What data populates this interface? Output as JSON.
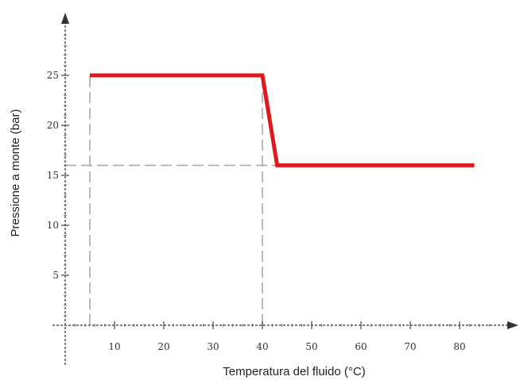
{
  "chart_data": {
    "type": "line",
    "xlabel": "Temperatura del fluido (°C)",
    "ylabel": "Pressione a monte (bar)",
    "x_ticks": [
      10,
      20,
      30,
      40,
      50,
      60,
      70,
      80
    ],
    "y_ticks": [
      5,
      10,
      15,
      20,
      25
    ],
    "xlim": [
      0,
      90
    ],
    "ylim": [
      0,
      30
    ],
    "series": [
      {
        "x": [
          5,
          40,
          43,
          83
        ],
        "y": [
          25,
          25,
          16,
          16
        ],
        "color": "#e0191e"
      }
    ],
    "reference_lines": [
      {
        "x": [
          5,
          5
        ],
        "y": [
          0,
          25
        ]
      },
      {
        "x": [
          40,
          40
        ],
        "y": [
          0,
          25
        ]
      },
      {
        "x": [
          0,
          43
        ],
        "y": [
          16,
          16
        ]
      }
    ],
    "grid": false,
    "arrows_on_axes": true
  }
}
